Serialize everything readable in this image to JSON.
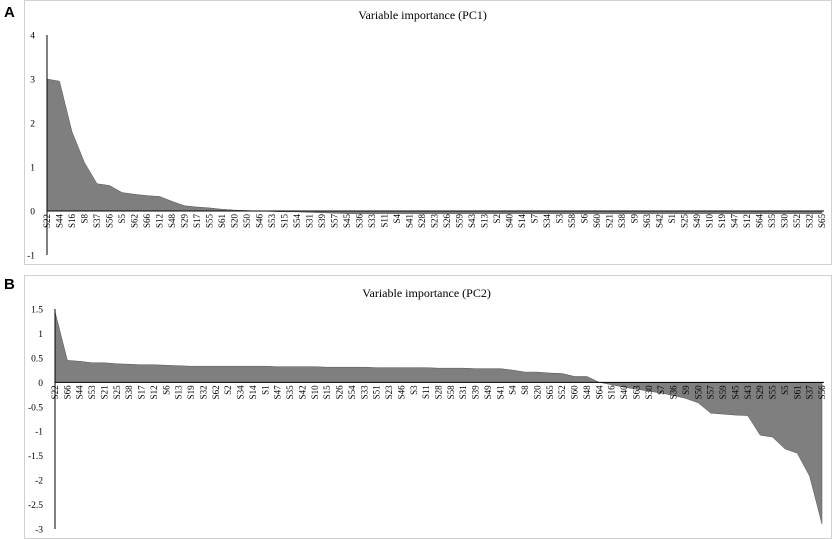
{
  "chart_data": [
    {
      "panel": "A",
      "type": "area",
      "title": "Variable importance (PC1)",
      "xlabel": "",
      "ylabel": "",
      "ylim": [
        -1,
        4
      ],
      "yticks": [
        4,
        3,
        2,
        1,
        0,
        -1
      ],
      "grid": false,
      "categories": [
        "S22",
        "S44",
        "S16",
        "S8",
        "S37",
        "S56",
        "S5",
        "S62",
        "S66",
        "S12",
        "S48",
        "S29",
        "S17",
        "S55",
        "S61",
        "S20",
        "S50",
        "S46",
        "S53",
        "S15",
        "S54",
        "S31",
        "S39",
        "S57",
        "S45",
        "S36",
        "S33",
        "S11",
        "S4",
        "S41",
        "S28",
        "S23",
        "S26",
        "S59",
        "S43",
        "S13",
        "S2",
        "S40",
        "S14",
        "S7",
        "S34",
        "S3",
        "S58",
        "S6",
        "S60",
        "S21",
        "S38",
        "S9",
        "S63",
        "S42",
        "S1",
        "S25",
        "S49",
        "S10",
        "S19",
        "S47",
        "S12",
        "S64",
        "S35",
        "S30",
        "S52",
        "S32",
        "S65"
      ],
      "values": [
        3.0,
        2.95,
        1.8,
        1.1,
        0.62,
        0.58,
        0.42,
        0.38,
        0.35,
        0.33,
        0.22,
        0.12,
        0.09,
        0.07,
        0.04,
        0.02,
        0.01,
        0.0,
        -0.01,
        -0.02,
        -0.02,
        -0.03,
        -0.04,
        -0.05,
        -0.06,
        -0.06,
        -0.06,
        -0.06,
        -0.06,
        -0.06,
        -0.06,
        -0.06,
        -0.06,
        -0.06,
        -0.06,
        -0.06,
        -0.06,
        -0.06,
        -0.06,
        -0.06,
        -0.06,
        -0.06,
        -0.06,
        -0.06,
        -0.06,
        -0.06,
        -0.06,
        -0.06,
        -0.06,
        -0.06,
        -0.06,
        -0.06,
        -0.06,
        -0.06,
        -0.06,
        -0.06,
        -0.06,
        -0.06,
        -0.06,
        -0.06,
        -0.06,
        -0.06,
        -0.06
      ],
      "fill_color": "#7f7f7f"
    },
    {
      "panel": "B",
      "type": "area",
      "title": "Variable importance (PC2)",
      "xlabel": "",
      "ylabel": "",
      "ylim": [
        -3,
        1.5
      ],
      "yticks": [
        1.5,
        1,
        0.5,
        0,
        -0.5,
        -1,
        -1.5,
        -2,
        -2.5,
        -3
      ],
      "grid": false,
      "categories": [
        "S22",
        "S66",
        "S44",
        "S53",
        "S21",
        "S25",
        "S38",
        "S17",
        "S12",
        "S6",
        "S13",
        "S19",
        "S32",
        "S62",
        "S2",
        "S34",
        "S14",
        "S1",
        "S47",
        "S35",
        "S42",
        "S10",
        "S15",
        "S26",
        "S54",
        "S33",
        "S51",
        "S23",
        "S46",
        "S3",
        "S11",
        "S28",
        "S58",
        "S31",
        "S39",
        "S49",
        "S41",
        "S4",
        "S8",
        "S20",
        "S65",
        "S52",
        "S60",
        "S48",
        "S64",
        "S16",
        "S40",
        "S63",
        "S30",
        "S7",
        "S36",
        "S9",
        "S50",
        "S57",
        "S59",
        "S45",
        "S43",
        "S29",
        "S55",
        "S5",
        "S61",
        "S37",
        "S56"
      ],
      "values": [
        1.45,
        0.45,
        0.43,
        0.4,
        0.4,
        0.38,
        0.37,
        0.36,
        0.36,
        0.35,
        0.34,
        0.33,
        0.33,
        0.33,
        0.33,
        0.33,
        0.33,
        0.33,
        0.32,
        0.32,
        0.32,
        0.32,
        0.31,
        0.31,
        0.31,
        0.31,
        0.3,
        0.3,
        0.3,
        0.3,
        0.3,
        0.29,
        0.29,
        0.29,
        0.28,
        0.28,
        0.28,
        0.25,
        0.21,
        0.21,
        0.19,
        0.18,
        0.12,
        0.12,
        0.0,
        -0.05,
        -0.1,
        -0.14,
        -0.18,
        -0.22,
        -0.27,
        -0.33,
        -0.42,
        -0.63,
        -0.65,
        -0.67,
        -0.68,
        -1.08,
        -1.12,
        -1.36,
        -1.45,
        -1.92,
        -2.9
      ],
      "fill_color": "#7f7f7f"
    }
  ],
  "panels": {
    "a_letter": "A",
    "b_letter": "B"
  }
}
